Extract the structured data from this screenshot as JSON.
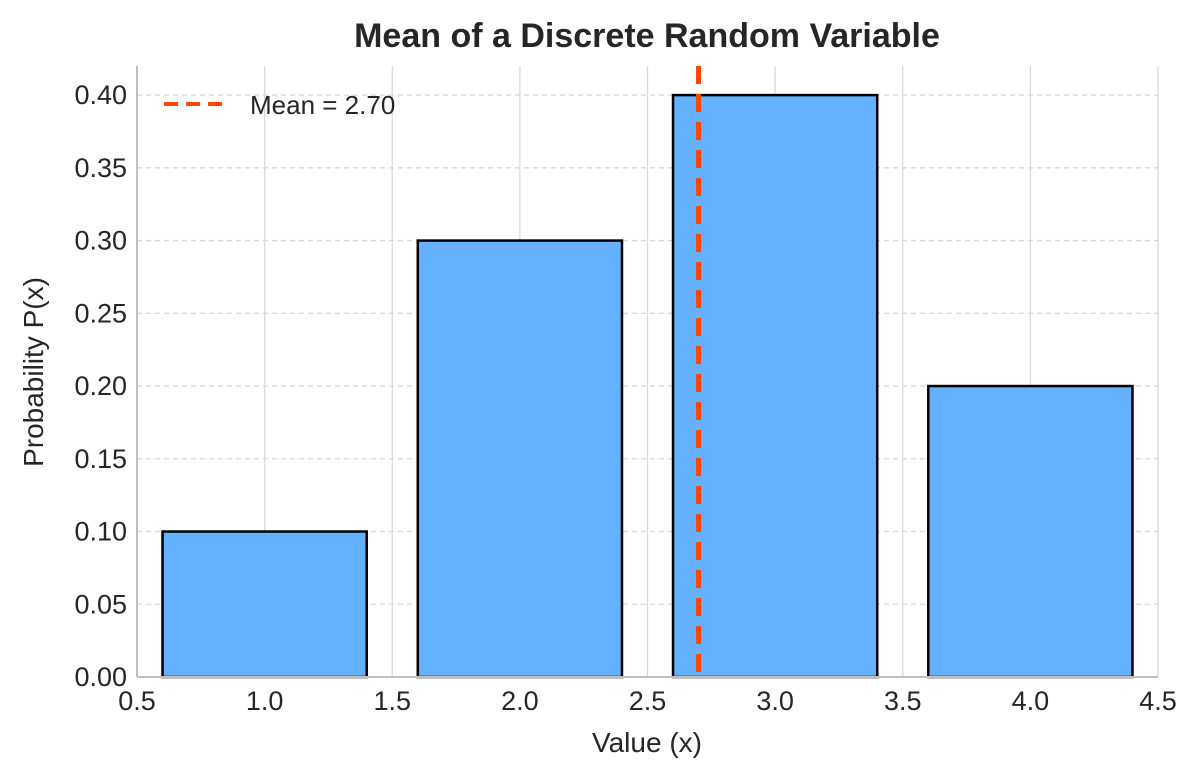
{
  "chart_data": {
    "type": "bar",
    "title": "Mean of a Discrete Random Variable",
    "xlabel": "Value (x)",
    "ylabel": "Probability P(x)",
    "x": [
      1.0,
      2.0,
      3.0,
      4.0
    ],
    "values": [
      0.1,
      0.3,
      0.4,
      0.2
    ],
    "bar_width": 0.8,
    "xlim": [
      0.5,
      4.5
    ],
    "ylim": [
      0.0,
      0.42
    ],
    "xticks": [
      "0.5",
      "1.0",
      "1.5",
      "2.0",
      "2.5",
      "3.0",
      "3.5",
      "4.0",
      "4.5"
    ],
    "yticks": [
      "0.00",
      "0.05",
      "0.10",
      "0.15",
      "0.20",
      "0.25",
      "0.30",
      "0.35",
      "0.40"
    ],
    "mean_line": {
      "x": 2.7,
      "label": "Mean = 2.70"
    },
    "legend_position": "top-left",
    "grid": true,
    "colors": {
      "bar_fill": "#64b2ff",
      "bar_edge": "#000000",
      "mean_line": "#ff4500",
      "grid": "#d9d9d9",
      "axis": "#bfbfbf",
      "text": "#262626"
    }
  }
}
